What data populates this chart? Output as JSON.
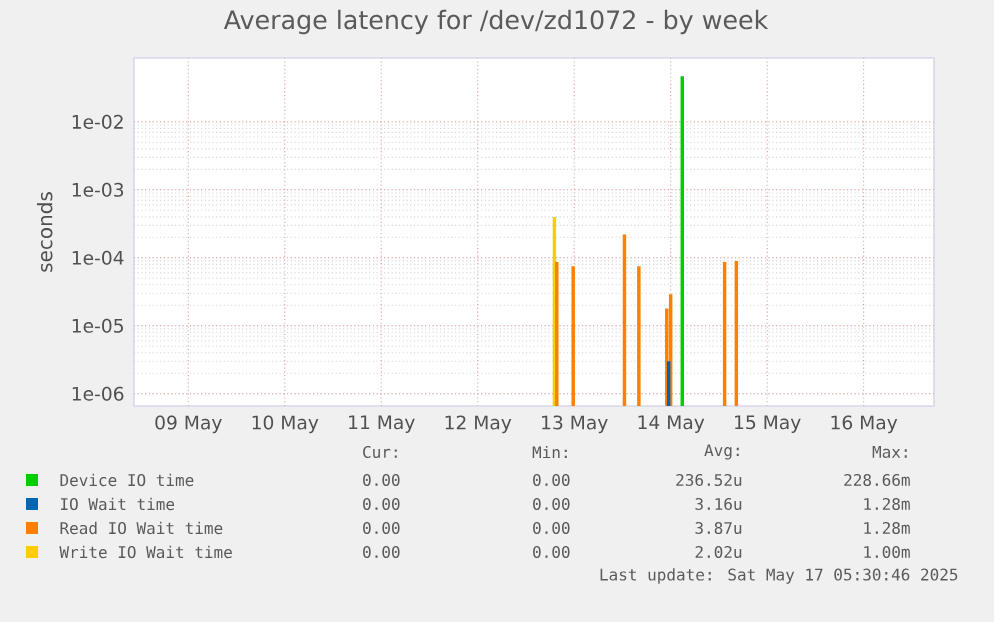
{
  "chart_data": {
    "type": "bar",
    "title": "Average latency for /dev/zd1072 - by week",
    "ylabel": "seconds",
    "log": "y",
    "grid": true,
    "legend": "bottom",
    "xlim": [
      "2025-05-08T22:30",
      "2025-05-17T05:30"
    ],
    "xticks": [
      {
        "value": "2025-05-09T12:00",
        "label": "09 May"
      },
      {
        "value": "2025-05-10T12:00",
        "label": "10 May"
      },
      {
        "value": "2025-05-11T12:00",
        "label": "11 May"
      },
      {
        "value": "2025-05-12T12:00",
        "label": "12 May"
      },
      {
        "value": "2025-05-13T12:00",
        "label": "13 May"
      },
      {
        "value": "2025-05-14T12:00",
        "label": "14 May"
      },
      {
        "value": "2025-05-15T12:00",
        "label": "15 May"
      },
      {
        "value": "2025-05-16T12:00",
        "label": "16 May"
      }
    ],
    "ylim": [
      6.6e-07,
      0.087
    ],
    "yticks": [
      {
        "value": 1e-06,
        "label": "1e-06"
      },
      {
        "value": 1e-05,
        "label": "1e-05"
      },
      {
        "value": 0.0001,
        "label": "1e-04"
      },
      {
        "value": 0.001,
        "label": "1e-03"
      },
      {
        "value": 0.01,
        "label": "1e-02"
      }
    ],
    "series": [
      {
        "name": "Device IO time",
        "color": "#00cc00",
        "x": [
          "2025-05-14T14:53"
        ],
        "values": [
          0.047
        ]
      },
      {
        "name": "IO Wait time",
        "color": "#0066b3",
        "x": [
          "2025-05-14T11:30"
        ],
        "values": [
          3e-06
        ]
      },
      {
        "name": "Read IO Wait time",
        "color": "#ff8000",
        "x": [
          "2025-05-13T07:40",
          "2025-05-13T11:45",
          "2025-05-14T00:30",
          "2025-05-14T04:05",
          "2025-05-14T11:02",
          "2025-05-14T12:00",
          "2025-05-15T01:25",
          "2025-05-15T04:20"
        ],
        "values": [
          8.7e-05,
          7.5e-05,
          0.00022,
          7.5e-05,
          1.8e-05,
          2.9e-05,
          8.7e-05,
          9e-05
        ]
      },
      {
        "name": "Write IO Wait time",
        "color": "#ffcc00",
        "x": [
          "2025-05-13T07:05"
        ],
        "values": [
          0.0004
        ]
      }
    ],
    "annotations": [
      "Cur:",
      "Min:",
      "Avg:",
      "Max:",
      "0.00",
      "0.00",
      "236.52u",
      "228.66m",
      "0.00",
      "0.00",
      "3.16u",
      "1.28m",
      "0.00",
      "0.00",
      "3.87u",
      "1.28m",
      "0.00",
      "0.00",
      "2.02u",
      "1.00m",
      "Last update: Sat May 17 05:30:46 2025"
    ]
  }
}
